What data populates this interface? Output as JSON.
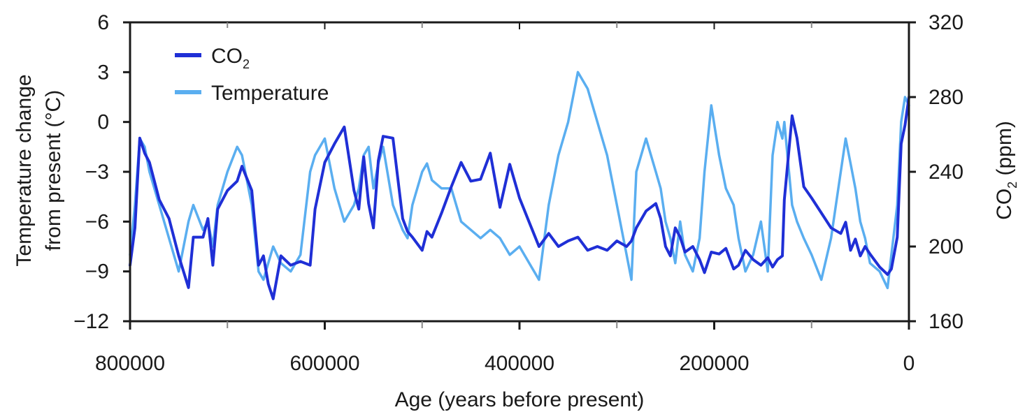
{
  "chart_data": {
    "type": "line",
    "xlabel": "Age (years before present)",
    "x_ticks": [
      "800000",
      "600000",
      "400000",
      "200000",
      "0"
    ],
    "x_tick_values": [
      800000,
      600000,
      400000,
      200000,
      0
    ],
    "xlim": [
      800000,
      0
    ],
    "x_reversed": true,
    "y_left": {
      "label_line1": "Temperature change",
      "label_line2": "from present (°C)",
      "ticks": [
        "6",
        "3",
        "0",
        "−3",
        "−6",
        "−9",
        "−12"
      ],
      "tick_values": [
        6,
        3,
        0,
        -3,
        -6,
        -9,
        -12
      ],
      "ylim": [
        -12,
        6
      ]
    },
    "y_right": {
      "label_main": "CO",
      "label_sub": "2",
      "label_rest": " (ppm)",
      "ticks": [
        "320",
        "280",
        "240",
        "200",
        "160"
      ],
      "tick_values": [
        320,
        280,
        240,
        200,
        160
      ],
      "ylim": [
        160,
        320
      ]
    },
    "legend": {
      "position": "top-left",
      "co2_main": "CO",
      "co2_sub": "2",
      "temperature": "Temperature"
    },
    "series": [
      {
        "name": "CO2",
        "axis": "right",
        "color": "#1f2fd6",
        "points": [
          [
            800000,
            190
          ],
          [
            795000,
            210
          ],
          [
            790000,
            258
          ],
          [
            785000,
            250
          ],
          [
            780000,
            245
          ],
          [
            770000,
            225
          ],
          [
            760000,
            215
          ],
          [
            750000,
            195
          ],
          [
            740000,
            178
          ],
          [
            735000,
            205
          ],
          [
            725000,
            205
          ],
          [
            720000,
            215
          ],
          [
            715000,
            190
          ],
          [
            710000,
            220
          ],
          [
            700000,
            230
          ],
          [
            690000,
            235
          ],
          [
            685000,
            243
          ],
          [
            675000,
            230
          ],
          [
            668000,
            190
          ],
          [
            663000,
            195
          ],
          [
            658000,
            180
          ],
          [
            653000,
            172
          ],
          [
            645000,
            195
          ],
          [
            635000,
            190
          ],
          [
            625000,
            192
          ],
          [
            615000,
            190
          ],
          [
            610000,
            220
          ],
          [
            600000,
            245
          ],
          [
            590000,
            255
          ],
          [
            580000,
            264
          ],
          [
            570000,
            230
          ],
          [
            565000,
            220
          ],
          [
            560000,
            248
          ],
          [
            555000,
            223
          ],
          [
            550000,
            210
          ],
          [
            545000,
            246
          ],
          [
            540000,
            259
          ],
          [
            530000,
            258
          ],
          [
            520000,
            215
          ],
          [
            515000,
            208
          ],
          [
            510000,
            205
          ],
          [
            500000,
            198
          ],
          [
            495000,
            208
          ],
          [
            490000,
            205
          ],
          [
            480000,
            218
          ],
          [
            470000,
            232
          ],
          [
            460000,
            245
          ],
          [
            450000,
            235
          ],
          [
            440000,
            236
          ],
          [
            430000,
            250
          ],
          [
            420000,
            221
          ],
          [
            410000,
            244
          ],
          [
            400000,
            226
          ],
          [
            390000,
            213
          ],
          [
            380000,
            200
          ],
          [
            370000,
            207
          ],
          [
            360000,
            200
          ],
          [
            350000,
            203
          ],
          [
            340000,
            205
          ],
          [
            330000,
            198
          ],
          [
            320000,
            200
          ],
          [
            310000,
            198
          ],
          [
            300000,
            203
          ],
          [
            290000,
            200
          ],
          [
            285000,
            203
          ],
          [
            280000,
            210
          ],
          [
            270000,
            219
          ],
          [
            260000,
            223
          ],
          [
            255000,
            215
          ],
          [
            250000,
            200
          ],
          [
            245000,
            195
          ],
          [
            240000,
            210
          ],
          [
            235000,
            205
          ],
          [
            230000,
            197
          ],
          [
            222000,
            200
          ],
          [
            215000,
            193
          ],
          [
            210000,
            186
          ],
          [
            203000,
            197
          ],
          [
            195000,
            196
          ],
          [
            188000,
            199
          ],
          [
            180000,
            188
          ],
          [
            175000,
            190
          ],
          [
            168000,
            198
          ],
          [
            160000,
            193
          ],
          [
            152000,
            190
          ],
          [
            145000,
            194
          ],
          [
            140000,
            189
          ],
          [
            135000,
            193
          ],
          [
            130000,
            195
          ],
          [
            128000,
            225
          ],
          [
            120000,
            270
          ],
          [
            115000,
            258
          ],
          [
            108000,
            232
          ],
          [
            100000,
            226
          ],
          [
            90000,
            218
          ],
          [
            80000,
            210
          ],
          [
            70000,
            207
          ],
          [
            65000,
            213
          ],
          [
            60000,
            198
          ],
          [
            55000,
            204
          ],
          [
            50000,
            195
          ],
          [
            45000,
            200
          ],
          [
            40000,
            196
          ],
          [
            30000,
            189
          ],
          [
            22000,
            185
          ],
          [
            18000,
            188
          ],
          [
            12000,
            205
          ],
          [
            8000,
            255
          ],
          [
            4000,
            265
          ],
          [
            0,
            280
          ]
        ]
      },
      {
        "name": "Temperature",
        "axis": "left",
        "color": "#5aaef0",
        "points": [
          [
            800000,
            -8
          ],
          [
            795000,
            -5
          ],
          [
            790000,
            -1
          ],
          [
            785000,
            -1.5
          ],
          [
            780000,
            -3
          ],
          [
            770000,
            -5
          ],
          [
            760000,
            -7
          ],
          [
            750000,
            -9
          ],
          [
            740000,
            -6
          ],
          [
            735000,
            -5
          ],
          [
            725000,
            -6.5
          ],
          [
            720000,
            -6
          ],
          [
            715000,
            -7.5
          ],
          [
            710000,
            -5
          ],
          [
            700000,
            -3
          ],
          [
            690000,
            -1.5
          ],
          [
            685000,
            -2
          ],
          [
            675000,
            -5
          ],
          [
            668000,
            -9
          ],
          [
            663000,
            -9.5
          ],
          [
            658000,
            -8.5
          ],
          [
            653000,
            -7.5
          ],
          [
            645000,
            -8.5
          ],
          [
            635000,
            -9
          ],
          [
            625000,
            -8
          ],
          [
            615000,
            -3
          ],
          [
            610000,
            -2
          ],
          [
            600000,
            -1
          ],
          [
            590000,
            -4
          ],
          [
            580000,
            -6
          ],
          [
            570000,
            -5
          ],
          [
            565000,
            -4
          ],
          [
            560000,
            -2
          ],
          [
            555000,
            -1.5
          ],
          [
            550000,
            -4
          ],
          [
            545000,
            -2.5
          ],
          [
            540000,
            -1.5
          ],
          [
            530000,
            -5
          ],
          [
            520000,
            -6.5
          ],
          [
            515000,
            -7
          ],
          [
            510000,
            -5
          ],
          [
            500000,
            -3
          ],
          [
            495000,
            -2.5
          ],
          [
            490000,
            -3.5
          ],
          [
            480000,
            -4
          ],
          [
            470000,
            -4
          ],
          [
            460000,
            -6
          ],
          [
            450000,
            -6.5
          ],
          [
            440000,
            -7
          ],
          [
            430000,
            -6.5
          ],
          [
            420000,
            -7
          ],
          [
            410000,
            -8
          ],
          [
            400000,
            -7.5
          ],
          [
            390000,
            -8.5
          ],
          [
            380000,
            -9.5
          ],
          [
            370000,
            -5
          ],
          [
            360000,
            -2
          ],
          [
            350000,
            0
          ],
          [
            340000,
            3
          ],
          [
            330000,
            2
          ],
          [
            320000,
            0
          ],
          [
            310000,
            -2
          ],
          [
            300000,
            -5
          ],
          [
            290000,
            -8
          ],
          [
            285000,
            -9.5
          ],
          [
            280000,
            -3
          ],
          [
            270000,
            -1
          ],
          [
            260000,
            -3
          ],
          [
            255000,
            -4
          ],
          [
            250000,
            -6
          ],
          [
            245000,
            -7
          ],
          [
            240000,
            -8.5
          ],
          [
            235000,
            -6
          ],
          [
            230000,
            -8
          ],
          [
            222000,
            -9
          ],
          [
            215000,
            -7
          ],
          [
            210000,
            -3
          ],
          [
            203000,
            1
          ],
          [
            195000,
            -2
          ],
          [
            188000,
            -4
          ],
          [
            180000,
            -5
          ],
          [
            175000,
            -7
          ],
          [
            168000,
            -9
          ],
          [
            160000,
            -8
          ],
          [
            152000,
            -6
          ],
          [
            145000,
            -9
          ],
          [
            140000,
            -2
          ],
          [
            135000,
            0
          ],
          [
            130000,
            -1
          ],
          [
            128000,
            0
          ],
          [
            120000,
            -5
          ],
          [
            115000,
            -6
          ],
          [
            108000,
            -7
          ],
          [
            100000,
            -8
          ],
          [
            90000,
            -9.5
          ],
          [
            80000,
            -7
          ],
          [
            70000,
            -3
          ],
          [
            65000,
            -1
          ],
          [
            60000,
            -2.5
          ],
          [
            55000,
            -4
          ],
          [
            50000,
            -6
          ],
          [
            45000,
            -7
          ],
          [
            40000,
            -8.5
          ],
          [
            30000,
            -9
          ],
          [
            22000,
            -10
          ],
          [
            18000,
            -8
          ],
          [
            12000,
            -5
          ],
          [
            8000,
            0
          ],
          [
            4000,
            1.5
          ],
          [
            0,
            1
          ]
        ]
      }
    ]
  }
}
